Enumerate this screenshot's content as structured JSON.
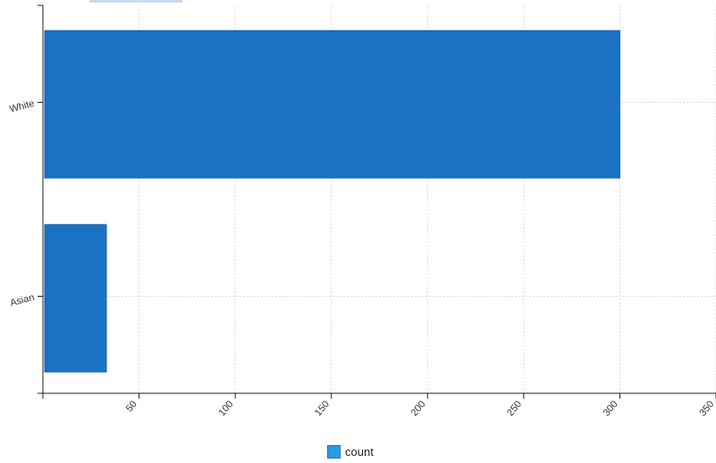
{
  "colors": {
    "bar": "#1b72c4",
    "legend_swatch": "#2a9be8",
    "grid": "#d6dde6",
    "axis": "#222222"
  },
  "legend": {
    "label": "count"
  },
  "chart_data": {
    "type": "bar",
    "orientation": "horizontal",
    "categories": [
      "White",
      "Asian"
    ],
    "series": [
      {
        "name": "count",
        "values": [
          300,
          33
        ]
      }
    ],
    "xlim": [
      0,
      350
    ],
    "xticks": [
      50,
      100,
      150,
      200,
      250,
      300,
      350
    ],
    "xlabel": "",
    "ylabel": "",
    "grid": true,
    "legend_position": "bottom-center"
  }
}
